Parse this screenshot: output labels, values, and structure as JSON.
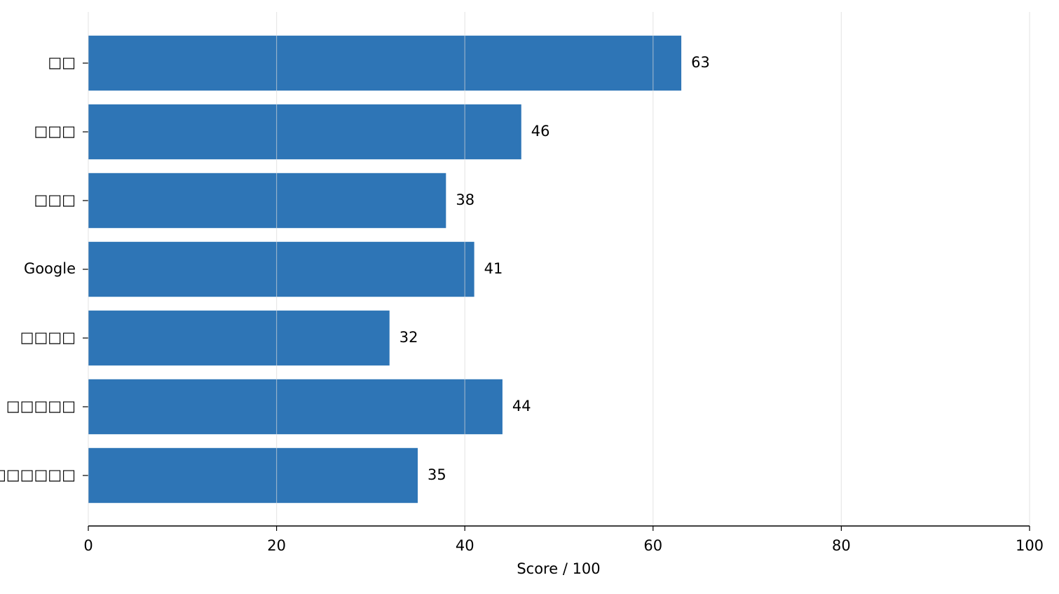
{
  "chart_data": {
    "type": "bar",
    "xlabel": "Score / 100",
    "categories": [
      "□□",
      "□□□",
      "□□□",
      "Google",
      "□□□□",
      "□□□□□",
      "□□□□□□"
    ],
    "values": [
      63,
      46,
      38,
      41,
      32,
      44,
      35
    ],
    "color": "#2e75b6",
    "xlim": [
      0,
      100
    ],
    "xticks": [
      0,
      20,
      40,
      60,
      80,
      100
    ],
    "grid": true
  }
}
